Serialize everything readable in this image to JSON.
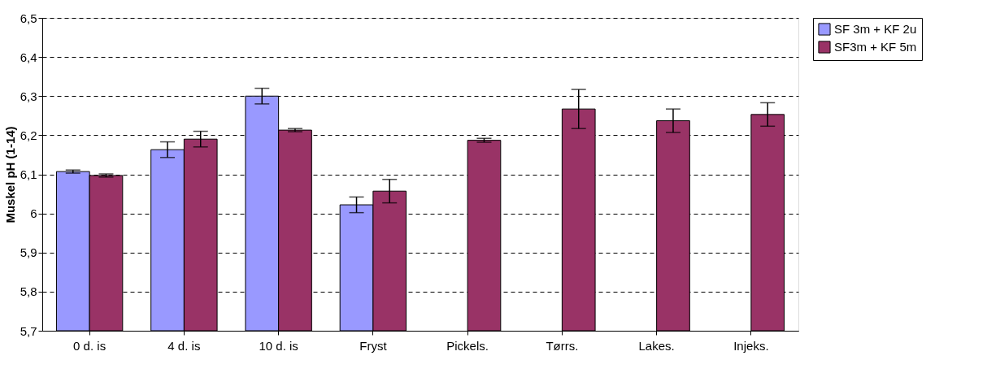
{
  "chart_data": {
    "type": "bar",
    "ylabel": "Muskel pH (1-14)",
    "categories": [
      "0 d. is",
      "4 d. is",
      "10 d. is",
      "Fryst",
      "Pickels.",
      "Tørrs.",
      "Lakes.",
      "Injeks."
    ],
    "series": [
      {
        "name": "SF 3m + KF 2u",
        "color": "#9999ff",
        "values": [
          6.107,
          6.163,
          6.3,
          6.022,
          null,
          null,
          null,
          null
        ],
        "errors": [
          0.004,
          0.02,
          0.02,
          0.02,
          null,
          null,
          null,
          null
        ]
      },
      {
        "name": "SF3m + KF 5m",
        "color": "#993366",
        "values": [
          6.097,
          6.19,
          6.213,
          6.057,
          6.187,
          6.267,
          6.237,
          6.253
        ],
        "errors": [
          0.004,
          0.02,
          0.004,
          0.03,
          0.005,
          0.05,
          0.03,
          0.03
        ]
      }
    ],
    "ylim": [
      5.7,
      6.5
    ],
    "yticks": [
      {
        "value": 5.7,
        "label": "5,7"
      },
      {
        "value": 5.8,
        "label": "5,8"
      },
      {
        "value": 5.9,
        "label": "5,9"
      },
      {
        "value": 6.0,
        "label": "6"
      },
      {
        "value": 6.1,
        "label": "6,1"
      },
      {
        "value": 6.2,
        "label": "6,2"
      },
      {
        "value": 6.3,
        "label": "6,3"
      },
      {
        "value": 6.4,
        "label": "6,4"
      },
      {
        "value": 6.5,
        "label": "6,5"
      }
    ],
    "grid": "y",
    "legend": "right"
  }
}
